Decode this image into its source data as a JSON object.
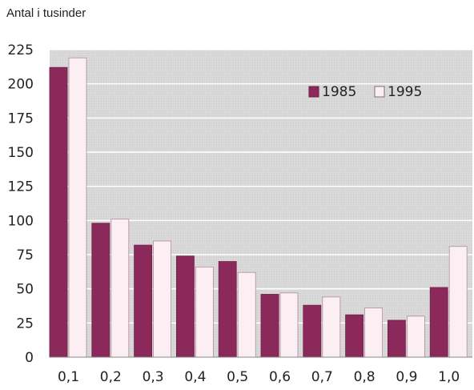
{
  "chart_data": {
    "type": "bar",
    "ylabel": "Antal i tusinder",
    "xlabel": "",
    "categories": [
      "0,1",
      "0,2",
      "0,3",
      "0,4",
      "0,5",
      "0,6",
      "0,7",
      "0,8",
      "0,9",
      "1,0"
    ],
    "series": [
      {
        "name": "1985",
        "color": "#8b2a5a",
        "values": [
          212,
          98,
          82,
          74,
          70,
          46,
          38,
          31,
          27,
          51
        ]
      },
      {
        "name": "1995",
        "color": "#fbeff4",
        "values": [
          219,
          101,
          85,
          66,
          62,
          47,
          44,
          36,
          30,
          81
        ]
      }
    ],
    "ylim": [
      0,
      225
    ],
    "yticks": [
      0,
      25,
      50,
      75,
      100,
      125,
      150,
      175,
      200,
      225
    ],
    "ytick_labels": [
      "0",
      "25",
      "50",
      "75",
      "100",
      "125",
      "150",
      "175",
      "200",
      "225"
    ],
    "grid": true,
    "legend_position": "top-right",
    "plot_background": "#dcdcdc",
    "grid_color": "#ffffff"
  }
}
